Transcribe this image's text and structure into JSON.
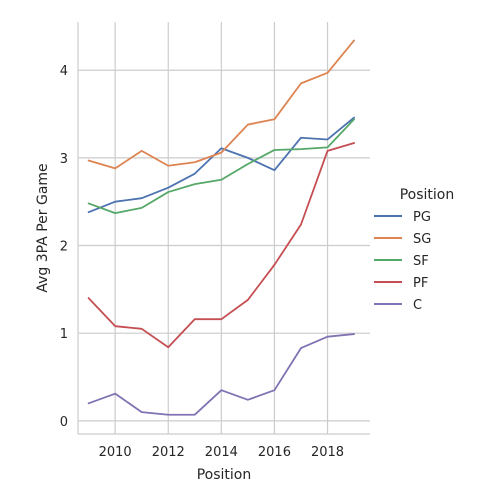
{
  "chart_data": {
    "type": "line",
    "x": [
      2009,
      2010,
      2011,
      2012,
      2013,
      2014,
      2015,
      2016,
      2017,
      2018,
      2019
    ],
    "xticks": [
      2010,
      2012,
      2014,
      2016,
      2018
    ],
    "yticks": [
      0,
      1,
      2,
      3,
      4
    ],
    "xlim": [
      2008.6,
      2019.6
    ],
    "ylim": [
      -0.15,
      4.55
    ],
    "xlabel": "Position",
    "ylabel": "Avg 3PA Per Game",
    "grid": true,
    "legend": {
      "title": "Position",
      "placement": "right"
    },
    "series": [
      {
        "name": "PG",
        "color": "#4c72b0",
        "values": [
          2.38,
          2.5,
          2.54,
          2.66,
          2.82,
          3.11,
          3.0,
          2.86,
          3.23,
          3.21,
          3.46
        ]
      },
      {
        "name": "SG",
        "color": "#dd8452",
        "values": [
          2.97,
          2.88,
          3.08,
          2.91,
          2.95,
          3.06,
          3.38,
          3.44,
          3.85,
          3.97,
          4.34
        ]
      },
      {
        "name": "SF",
        "color": "#55a868",
        "values": [
          2.48,
          2.37,
          2.43,
          2.61,
          2.7,
          2.75,
          2.93,
          3.09,
          3.1,
          3.12,
          3.44
        ]
      },
      {
        "name": "PF",
        "color": "#c44e52",
        "values": [
          1.4,
          1.08,
          1.05,
          0.84,
          1.16,
          1.16,
          1.38,
          1.78,
          2.24,
          3.08,
          3.17
        ]
      },
      {
        "name": "C",
        "color": "#8172b3",
        "values": [
          0.2,
          0.31,
          0.1,
          0.07,
          0.07,
          0.35,
          0.24,
          0.35,
          0.83,
          0.96,
          0.99
        ]
      }
    ]
  }
}
